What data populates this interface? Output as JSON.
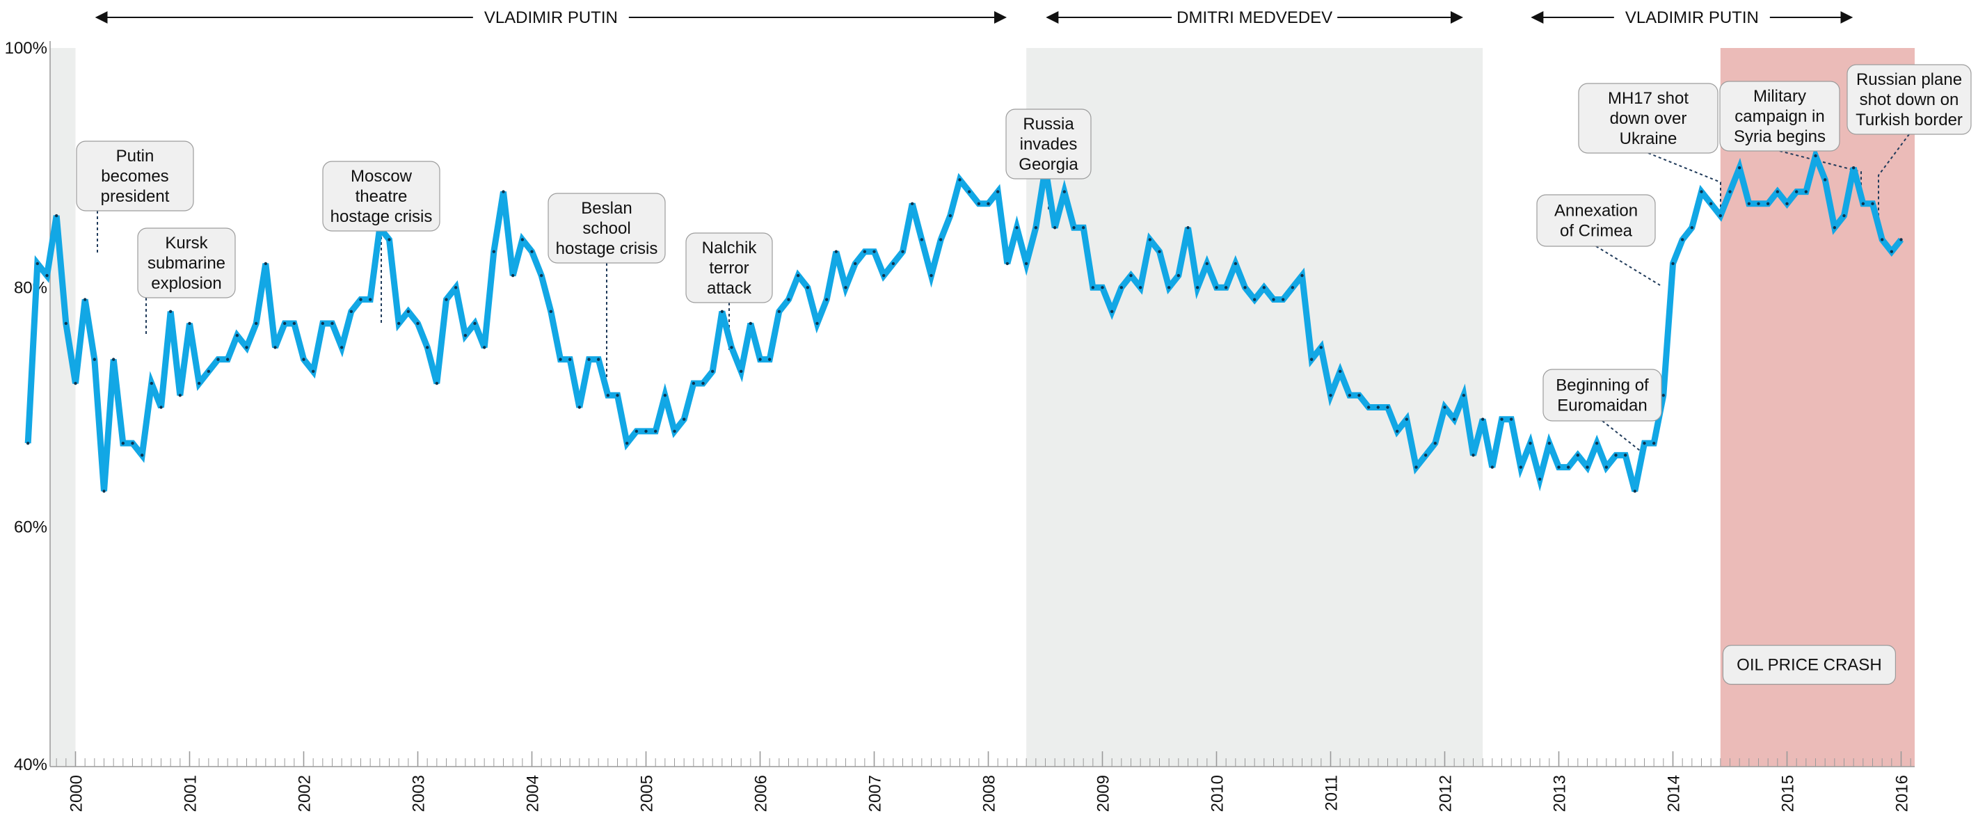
{
  "chart_data": {
    "type": "line",
    "title": "",
    "xlabel": "",
    "ylabel": "",
    "xlim": [
      "1999-08",
      "2016-04"
    ],
    "ylim": [
      40,
      100
    ],
    "yticks": [
      "40%",
      "60%",
      "80%",
      "100%"
    ],
    "xticks": [
      "2000",
      "2001",
      "2002",
      "2003",
      "2004",
      "2005",
      "2006",
      "2007",
      "2008",
      "2009",
      "2010",
      "2011",
      "2012",
      "2013",
      "2014",
      "2015",
      "2016"
    ],
    "grid": false,
    "line_color": "#12a7e5",
    "series": [
      {
        "name": "",
        "points": [
          {
            "x": "1999-08",
            "y": 67
          },
          {
            "x": "1999-09",
            "y": 82
          },
          {
            "x": "1999-10",
            "y": 81
          },
          {
            "x": "1999-11",
            "y": 86
          },
          {
            "x": "1999-12",
            "y": 77
          },
          {
            "x": "2000-01",
            "y": 72
          },
          {
            "x": "2000-02",
            "y": 79
          },
          {
            "x": "2000-03",
            "y": 74
          },
          {
            "x": "2000-04",
            "y": 63
          },
          {
            "x": "2000-05",
            "y": 74
          },
          {
            "x": "2000-06",
            "y": 67
          },
          {
            "x": "2000-07",
            "y": 67
          },
          {
            "x": "2000-08",
            "y": 66
          },
          {
            "x": "2000-09",
            "y": 72
          },
          {
            "x": "2000-10",
            "y": 70
          },
          {
            "x": "2000-11",
            "y": 78
          },
          {
            "x": "2000-12",
            "y": 71
          },
          {
            "x": "2001-01",
            "y": 77
          },
          {
            "x": "2001-02",
            "y": 72
          },
          {
            "x": "2001-03",
            "y": 73
          },
          {
            "x": "2001-04",
            "y": 74
          },
          {
            "x": "2001-05",
            "y": 74
          },
          {
            "x": "2001-06",
            "y": 76
          },
          {
            "x": "2001-07",
            "y": 75
          },
          {
            "x": "2001-08",
            "y": 77
          },
          {
            "x": "2001-09",
            "y": 82
          },
          {
            "x": "2001-10",
            "y": 75
          },
          {
            "x": "2001-11",
            "y": 77
          },
          {
            "x": "2001-12",
            "y": 77
          },
          {
            "x": "2002-01",
            "y": 74
          },
          {
            "x": "2002-02",
            "y": 73
          },
          {
            "x": "2002-03",
            "y": 77
          },
          {
            "x": "2002-04",
            "y": 77
          },
          {
            "x": "2002-05",
            "y": 75
          },
          {
            "x": "2002-06",
            "y": 78
          },
          {
            "x": "2002-07",
            "y": 79
          },
          {
            "x": "2002-08",
            "y": 79
          },
          {
            "x": "2002-09",
            "y": 85
          },
          {
            "x": "2002-10",
            "y": 84
          },
          {
            "x": "2002-11",
            "y": 77
          },
          {
            "x": "2002-12",
            "y": 78
          },
          {
            "x": "2003-01",
            "y": 77
          },
          {
            "x": "2003-02",
            "y": 75
          },
          {
            "x": "2003-03",
            "y": 72
          },
          {
            "x": "2003-04",
            "y": 79
          },
          {
            "x": "2003-05",
            "y": 80
          },
          {
            "x": "2003-06",
            "y": 76
          },
          {
            "x": "2003-07",
            "y": 77
          },
          {
            "x": "2003-08",
            "y": 75
          },
          {
            "x": "2003-09",
            "y": 83
          },
          {
            "x": "2003-10",
            "y": 88
          },
          {
            "x": "2003-11",
            "y": 81
          },
          {
            "x": "2003-12",
            "y": 84
          },
          {
            "x": "2004-01",
            "y": 83
          },
          {
            "x": "2004-02",
            "y": 81
          },
          {
            "x": "2004-03",
            "y": 78
          },
          {
            "x": "2004-04",
            "y": 74
          },
          {
            "x": "2004-05",
            "y": 74
          },
          {
            "x": "2004-06",
            "y": 70
          },
          {
            "x": "2004-07",
            "y": 74
          },
          {
            "x": "2004-08",
            "y": 74
          },
          {
            "x": "2004-09",
            "y": 71
          },
          {
            "x": "2004-10",
            "y": 71
          },
          {
            "x": "2004-11",
            "y": 67
          },
          {
            "x": "2004-12",
            "y": 68
          },
          {
            "x": "2005-01",
            "y": 68
          },
          {
            "x": "2005-02",
            "y": 68
          },
          {
            "x": "2005-03",
            "y": 71
          },
          {
            "x": "2005-04",
            "y": 68
          },
          {
            "x": "2005-05",
            "y": 69
          },
          {
            "x": "2005-06",
            "y": 72
          },
          {
            "x": "2005-07",
            "y": 72
          },
          {
            "x": "2005-08",
            "y": 73
          },
          {
            "x": "2005-09",
            "y": 78
          },
          {
            "x": "2005-10",
            "y": 75
          },
          {
            "x": "2005-11",
            "y": 73
          },
          {
            "x": "2005-12",
            "y": 77
          },
          {
            "x": "2006-01",
            "y": 74
          },
          {
            "x": "2006-02",
            "y": 74
          },
          {
            "x": "2006-03",
            "y": 78
          },
          {
            "x": "2006-04",
            "y": 79
          },
          {
            "x": "2006-05",
            "y": 81
          },
          {
            "x": "2006-06",
            "y": 80
          },
          {
            "x": "2006-07",
            "y": 77
          },
          {
            "x": "2006-08",
            "y": 79
          },
          {
            "x": "2006-09",
            "y": 83
          },
          {
            "x": "2006-10",
            "y": 80
          },
          {
            "x": "2006-11",
            "y": 82
          },
          {
            "x": "2006-12",
            "y": 83
          },
          {
            "x": "2007-01",
            "y": 83
          },
          {
            "x": "2007-02",
            "y": 81
          },
          {
            "x": "2007-03",
            "y": 82
          },
          {
            "x": "2007-04",
            "y": 83
          },
          {
            "x": "2007-05",
            "y": 87
          },
          {
            "x": "2007-06",
            "y": 84
          },
          {
            "x": "2007-07",
            "y": 81
          },
          {
            "x": "2007-08",
            "y": 84
          },
          {
            "x": "2007-09",
            "y": 86
          },
          {
            "x": "2007-10",
            "y": 89
          },
          {
            "x": "2007-11",
            "y": 88
          },
          {
            "x": "2007-12",
            "y": 87
          },
          {
            "x": "2008-01",
            "y": 87
          },
          {
            "x": "2008-02",
            "y": 88
          },
          {
            "x": "2008-03",
            "y": 82
          },
          {
            "x": "2008-04",
            "y": 85
          },
          {
            "x": "2008-05",
            "y": 82
          },
          {
            "x": "2008-06",
            "y": 85
          },
          {
            "x": "2008-07",
            "y": 90
          },
          {
            "x": "2008-08",
            "y": 85
          },
          {
            "x": "2008-09",
            "y": 88
          },
          {
            "x": "2008-10",
            "y": 85
          },
          {
            "x": "2008-11",
            "y": 85
          },
          {
            "x": "2008-12",
            "y": 80
          },
          {
            "x": "2009-01",
            "y": 80
          },
          {
            "x": "2009-02",
            "y": 78
          },
          {
            "x": "2009-03",
            "y": 80
          },
          {
            "x": "2009-04",
            "y": 81
          },
          {
            "x": "2009-05",
            "y": 80
          },
          {
            "x": "2009-06",
            "y": 84
          },
          {
            "x": "2009-07",
            "y": 83
          },
          {
            "x": "2009-08",
            "y": 80
          },
          {
            "x": "2009-09",
            "y": 81
          },
          {
            "x": "2009-10",
            "y": 85
          },
          {
            "x": "2009-11",
            "y": 80
          },
          {
            "x": "2009-12",
            "y": 82
          },
          {
            "x": "2010-01",
            "y": 80
          },
          {
            "x": "2010-02",
            "y": 80
          },
          {
            "x": "2010-03",
            "y": 82
          },
          {
            "x": "2010-04",
            "y": 80
          },
          {
            "x": "2010-05",
            "y": 79
          },
          {
            "x": "2010-06",
            "y": 80
          },
          {
            "x": "2010-07",
            "y": 79
          },
          {
            "x": "2010-08",
            "y": 79
          },
          {
            "x": "2010-09",
            "y": 80
          },
          {
            "x": "2010-10",
            "y": 81
          },
          {
            "x": "2010-11",
            "y": 74
          },
          {
            "x": "2010-12",
            "y": 75
          },
          {
            "x": "2011-01",
            "y": 71
          },
          {
            "x": "2011-02",
            "y": 73
          },
          {
            "x": "2011-03",
            "y": 71
          },
          {
            "x": "2011-04",
            "y": 71
          },
          {
            "x": "2011-05",
            "y": 70
          },
          {
            "x": "2011-06",
            "y": 70
          },
          {
            "x": "2011-07",
            "y": 70
          },
          {
            "x": "2011-08",
            "y": 68
          },
          {
            "x": "2011-09",
            "y": 69
          },
          {
            "x": "2011-10",
            "y": 65
          },
          {
            "x": "2011-11",
            "y": 66
          },
          {
            "x": "2011-12",
            "y": 67
          },
          {
            "x": "2012-01",
            "y": 70
          },
          {
            "x": "2012-02",
            "y": 69
          },
          {
            "x": "2012-03",
            "y": 71
          },
          {
            "x": "2012-04",
            "y": 66
          },
          {
            "x": "2012-05",
            "y": 69
          },
          {
            "x": "2012-06",
            "y": 65
          },
          {
            "x": "2012-07",
            "y": 69
          },
          {
            "x": "2012-08",
            "y": 69
          },
          {
            "x": "2012-09",
            "y": 65
          },
          {
            "x": "2012-10",
            "y": 67
          },
          {
            "x": "2012-11",
            "y": 64
          },
          {
            "x": "2012-12",
            "y": 67
          },
          {
            "x": "2013-01",
            "y": 65
          },
          {
            "x": "2013-02",
            "y": 65
          },
          {
            "x": "2013-03",
            "y": 66
          },
          {
            "x": "2013-04",
            "y": 65
          },
          {
            "x": "2013-05",
            "y": 67
          },
          {
            "x": "2013-06",
            "y": 65
          },
          {
            "x": "2013-07",
            "y": 66
          },
          {
            "x": "2013-08",
            "y": 66
          },
          {
            "x": "2013-09",
            "y": 63
          },
          {
            "x": "2013-10",
            "y": 67
          },
          {
            "x": "2013-11",
            "y": 67
          },
          {
            "x": "2013-12",
            "y": 71
          },
          {
            "x": "2014-01",
            "y": 82
          },
          {
            "x": "2014-02",
            "y": 84
          },
          {
            "x": "2014-03",
            "y": 85
          },
          {
            "x": "2014-04",
            "y": 88
          },
          {
            "x": "2014-05",
            "y": 87
          },
          {
            "x": "2014-06",
            "y": 86
          },
          {
            "x": "2014-07",
            "y": 88
          },
          {
            "x": "2014-08",
            "y": 90
          },
          {
            "x": "2014-09",
            "y": 87
          },
          {
            "x": "2014-10",
            "y": 87
          },
          {
            "x": "2014-11",
            "y": 87
          },
          {
            "x": "2014-12",
            "y": 88
          },
          {
            "x": "2015-01",
            "y": 87
          },
          {
            "x": "2015-02",
            "y": 88
          },
          {
            "x": "2015-03",
            "y": 88
          },
          {
            "x": "2015-04",
            "y": 91
          },
          {
            "x": "2015-05",
            "y": 89
          },
          {
            "x": "2015-06",
            "y": 85
          },
          {
            "x": "2015-07",
            "y": 86
          },
          {
            "x": "2015-08",
            "y": 90
          },
          {
            "x": "2015-09",
            "y": 87
          },
          {
            "x": "2015-10",
            "y": 87
          },
          {
            "x": "2015-11",
            "y": 84
          },
          {
            "x": "2015-12",
            "y": 83
          },
          {
            "x": "2016-01",
            "y": 84
          }
        ]
      }
    ],
    "shaded_periods": [
      {
        "start": "1999-08",
        "end": "2000-01",
        "color": "#eceeed",
        "label": ""
      },
      {
        "start": "2008-05",
        "end": "2012-05",
        "color": "#eceeed",
        "label": ""
      },
      {
        "start": "2014-06",
        "end": "2016-04",
        "color": "#ebbbb8",
        "label": "OIL PRICE CRASH"
      }
    ],
    "eras": [
      {
        "label": "VLADIMIR PUTIN",
        "start": "2000-01",
        "end": "2008-05"
      },
      {
        "label": "DMITRI MEDVEDEV",
        "start": "2008-05",
        "end": "2012-05"
      },
      {
        "label": "VLADIMIR PUTIN",
        "start": "2012-08",
        "end": "2015-10"
      }
    ],
    "annotations": [
      {
        "text": "Putin becomes president",
        "lines": [
          "Putin",
          "becomes",
          "president"
        ],
        "date": "2000-01",
        "value": 85
      },
      {
        "text": "Kursk submarine explosion",
        "lines": [
          "Kursk",
          "submarine",
          "explosion"
        ],
        "date": "2000-06",
        "value": 77
      },
      {
        "text": "Moscow theatre hostage crisis",
        "lines": [
          "Moscow",
          "theatre",
          "hostage crisis"
        ],
        "date": "2002-08",
        "value": 79
      },
      {
        "text": "Beslan school hostage crisis",
        "lines": [
          "Beslan",
          "school",
          "hostage crisis"
        ],
        "date": "2004-09",
        "value": 74
      },
      {
        "text": "Nalchik terror attack",
        "lines": [
          "Nalchik",
          "terror",
          "attack"
        ],
        "date": "2005-10",
        "value": 75
      },
      {
        "text": "Russia invades Georgia",
        "lines": [
          "Russia",
          "invades",
          "Georgia"
        ],
        "date": "2008-07",
        "value": 87
      },
      {
        "text": "Annexation of Crimea",
        "lines": [
          "Annexation",
          "of Crimea"
        ],
        "date": "2014-02",
        "value": 82
      },
      {
        "text": "Beginning of Euromaidan",
        "lines": [
          "Beginning of",
          "Euromaidan"
        ],
        "date": "2013-11",
        "value": 68
      },
      {
        "text": "MH17 shot down over Ukraine",
        "lines": [
          "MH17 shot",
          "down over",
          "Ukraine"
        ],
        "date": "2014-07",
        "value": 87
      },
      {
        "text": "Military campaign in Syria begins",
        "lines": [
          "Military",
          "campaign in",
          "Syria begins"
        ],
        "date": "2015-09",
        "value": 88
      },
      {
        "text": "Russian plane shot down on Turkish border",
        "lines": [
          "Russian plane",
          "shot down on",
          "Turkish border"
        ],
        "date": "2015-11",
        "value": 87
      }
    ]
  }
}
